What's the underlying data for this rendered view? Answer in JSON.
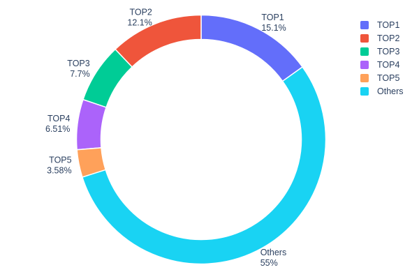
{
  "chart_data": {
    "type": "pie",
    "subtype": "donut",
    "hole": 0.8,
    "direction": "counterclockwise",
    "rotation": 0,
    "title": "",
    "labels": [
      "TOP1",
      "TOP2",
      "TOP3",
      "TOP4",
      "TOP5",
      "Others"
    ],
    "values": [
      15.1,
      12.1,
      7.7,
      6.51,
      3.58,
      55
    ],
    "percent_labels": [
      "15.1%",
      "12.1%",
      "7.7%",
      "6.51%",
      "3.58%",
      "55%"
    ],
    "colors": [
      "#636EFA",
      "#EF553B",
      "#00CC96",
      "#AB63FA",
      "#FFA15A",
      "#19D3F3"
    ],
    "slice_border_color": "#ffffff",
    "text_color": "#2a3f5f",
    "background": "#ffffff",
    "legend": {
      "position": "right",
      "entries": [
        "TOP1",
        "TOP2",
        "TOP3",
        "TOP4",
        "TOP5",
        "Others"
      ]
    }
  }
}
